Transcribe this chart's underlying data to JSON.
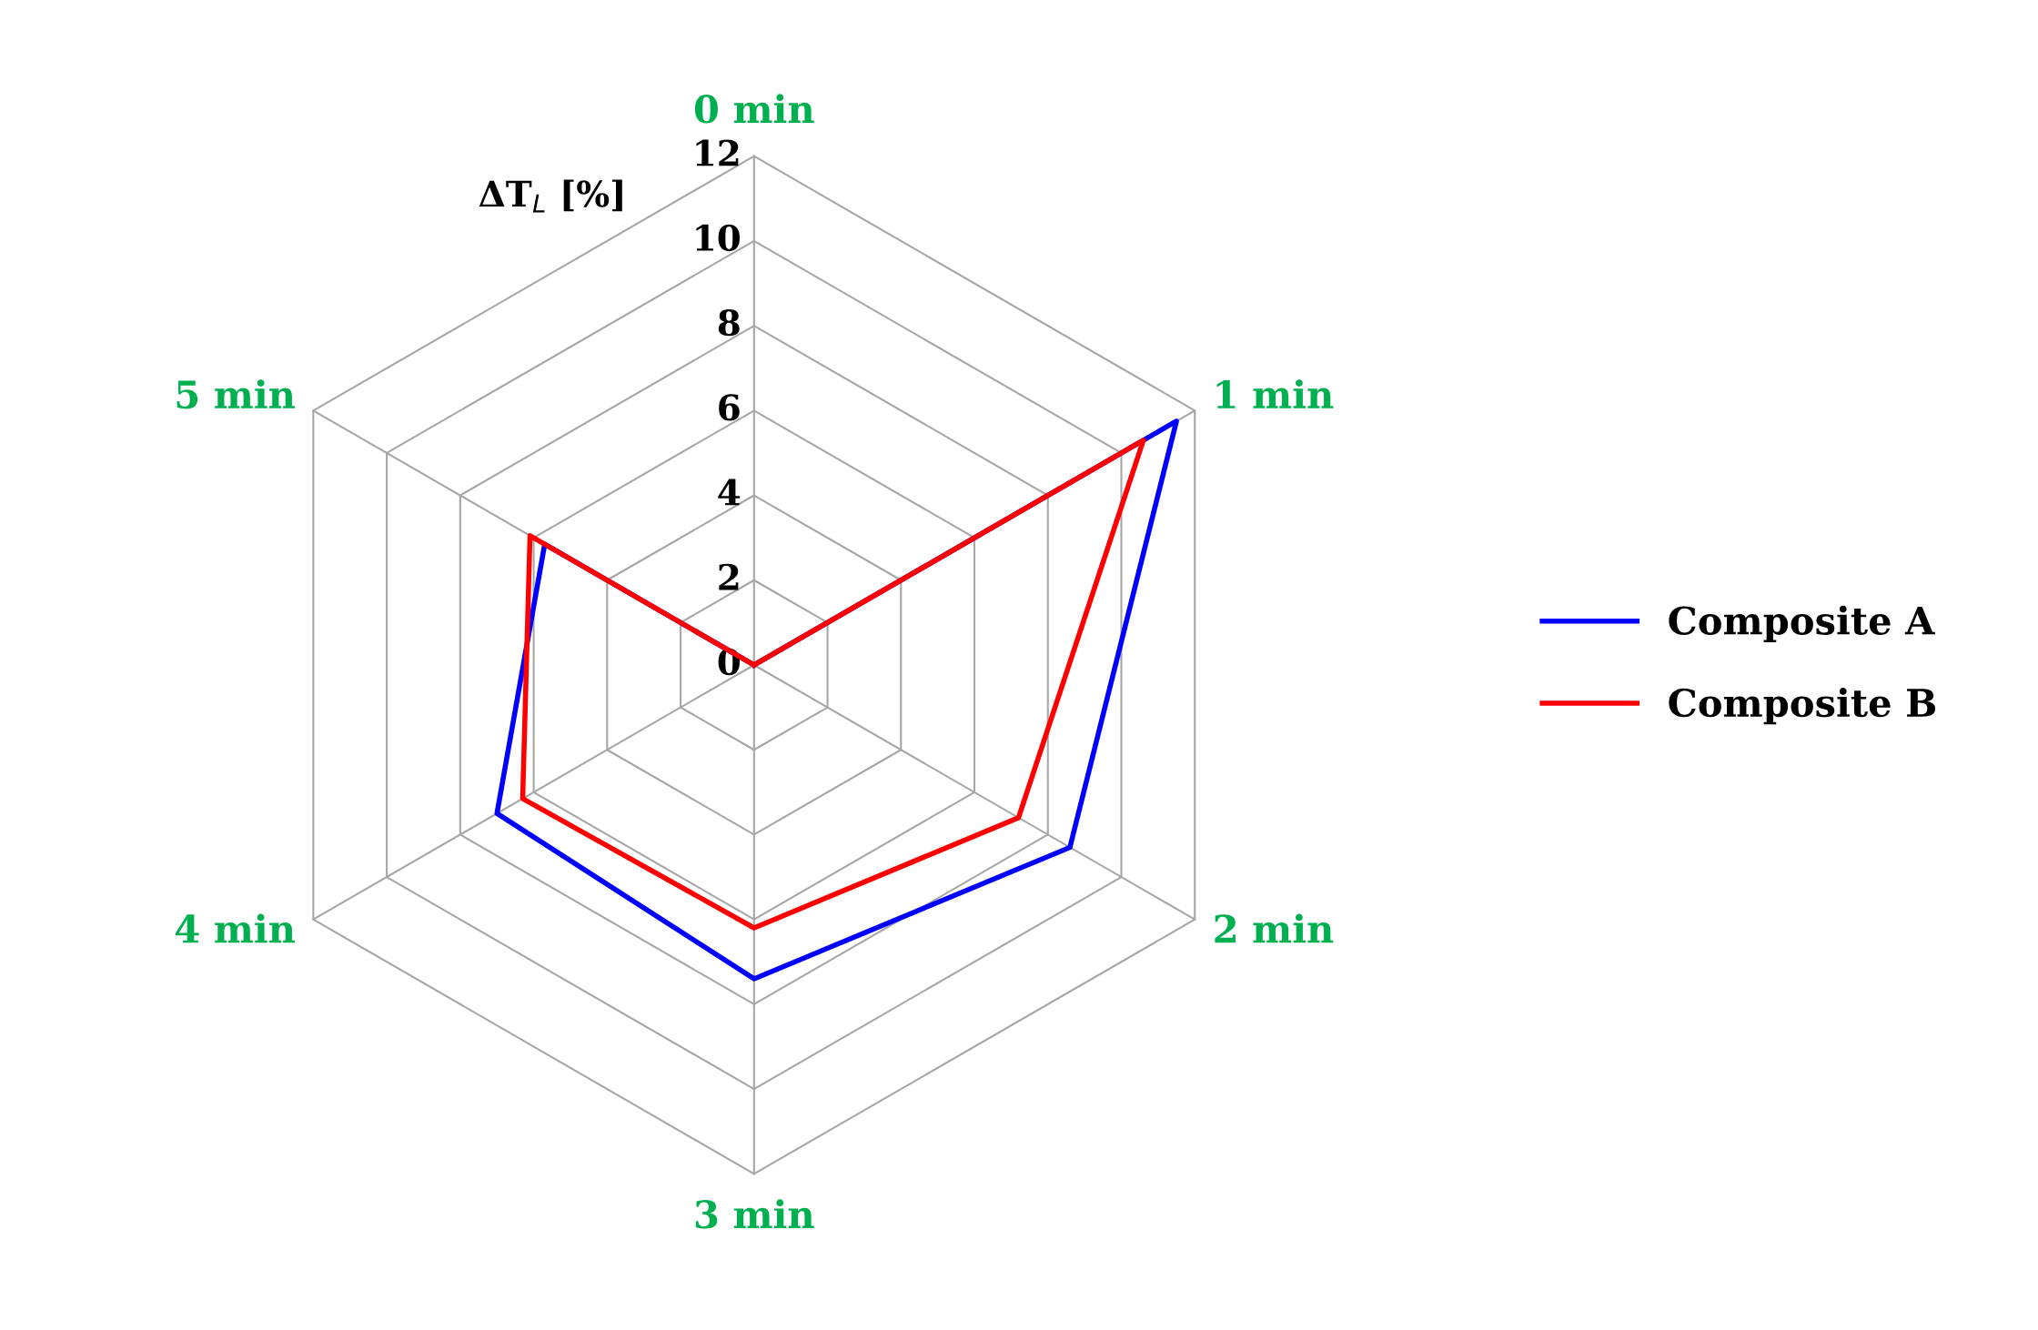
{
  "chart_data": {
    "type": "radar",
    "ylabel": "ΔT$_{L}$ [%]",
    "categories": [
      "0 min",
      "1 min",
      "2 min",
      "3 min",
      "4 min",
      "5 min"
    ],
    "series": [
      {
        "name": "Composite A",
        "color": "#0000ff",
        "values": [
          0,
          11.5,
          8.6,
          7.4,
          7.0,
          5.7
        ]
      },
      {
        "name": "Composite B",
        "color": "#ff0000",
        "values": [
          0,
          10.6,
          7.2,
          6.2,
          6.3,
          6.1
        ]
      }
    ],
    "ylim": [
      0,
      12
    ],
    "yticks": [
      0,
      2,
      4,
      6,
      8,
      10,
      12
    ],
    "grid": true,
    "legend": "right",
    "line_style": "solid",
    "marker": "none"
  }
}
